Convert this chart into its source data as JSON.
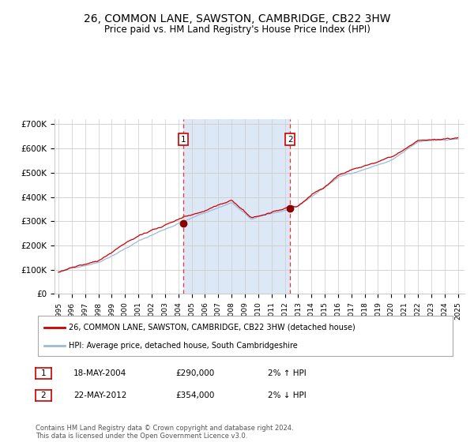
{
  "title": "26, COMMON LANE, SAWSTON, CAMBRIDGE, CB22 3HW",
  "subtitle": "Price paid vs. HM Land Registry's House Price Index (HPI)",
  "title_fontsize": 10,
  "subtitle_fontsize": 8.5,
  "background_color": "#ffffff",
  "plot_bg_color": "#ffffff",
  "grid_color": "#cccccc",
  "hpi_line_color": "#a0b8d8",
  "price_line_color": "#cc0000",
  "marker_color": "#880000",
  "shade_color": "#dce8f5",
  "dashed_line_color": "#ee3333",
  "ylim": [
    0,
    720000
  ],
  "yticks": [
    0,
    100000,
    200000,
    300000,
    400000,
    500000,
    600000,
    700000
  ],
  "ytick_labels": [
    "£0",
    "£100K",
    "£200K",
    "£300K",
    "£400K",
    "£500K",
    "£600K",
    "£700K"
  ],
  "x_start_year": 1995,
  "x_end_year": 2025,
  "purchase1_date": 2004.375,
  "purchase1_price": 290000,
  "purchase2_date": 2012.39,
  "purchase2_price": 354000,
  "legend_label1": "26, COMMON LANE, SAWSTON, CAMBRIDGE, CB22 3HW (detached house)",
  "legend_label2": "HPI: Average price, detached house, South Cambridgeshire",
  "annotation1_label": "1",
  "annotation2_label": "2",
  "footer": "Contains HM Land Registry data © Crown copyright and database right 2024.\nThis data is licensed under the Open Government Licence v3.0.",
  "seed": 42
}
